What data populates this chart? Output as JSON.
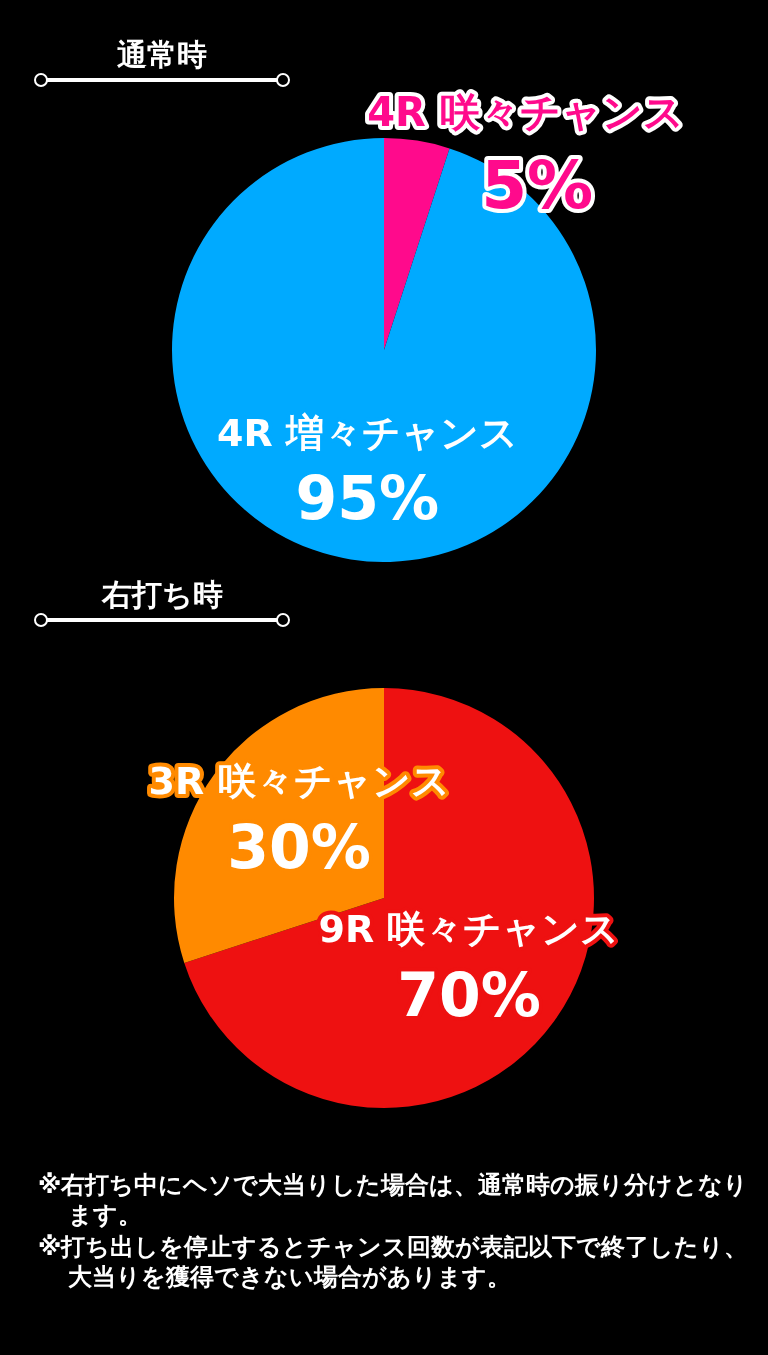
{
  "chart_data": [
    {
      "type": "pie",
      "title": "通常時",
      "categories": [
        "4R 咲々チャンス",
        "4R 増々チャンス"
      ],
      "values": [
        5,
        95
      ],
      "colors": [
        "#ff0a8c",
        "#00aaff"
      ],
      "value_labels": [
        "5%",
        "95%"
      ]
    },
    {
      "type": "pie",
      "title": "右打ち時",
      "categories": [
        "9R 咲々チャンス",
        "3R 咲々チャンス"
      ],
      "values": [
        70,
        30
      ],
      "colors": [
        "#ee1111",
        "#ff8a00"
      ],
      "value_labels": [
        "70%",
        "30%"
      ],
      "annotations": [
        "※右打ち中にヘソで大当りした場合は、通常時の振り分けとなります。",
        "※打ち出しを停止するとチャンス回数が表記以下で終了したり、大当りを獲得できない場合があります。"
      ]
    }
  ]
}
